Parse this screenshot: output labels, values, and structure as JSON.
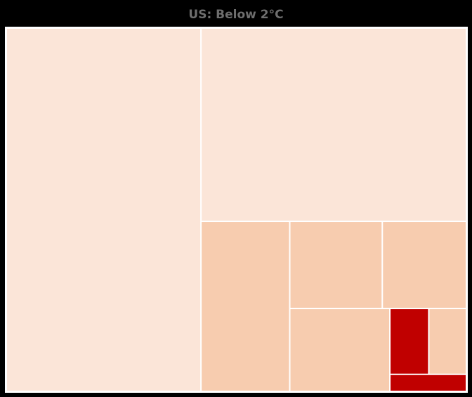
{
  "chart_data": {
    "type": "treemap",
    "title": "US: Below 2°C",
    "colors": {
      "light": "#fbe5d8",
      "medium": "#f7ccaf",
      "dark": "#c00000",
      "border": "#ffffff",
      "background": "#000000"
    },
    "cells": [
      {
        "area": 0.4231,
        "shade": "light"
      },
      {
        "area": 0.3069,
        "shade": "light"
      },
      {
        "area": 0.0902,
        "shade": "medium"
      },
      {
        "area": 0.0482,
        "shade": "medium"
      },
      {
        "area": 0.0438,
        "shade": "medium"
      },
      {
        "area": 0.0496,
        "shade": "medium"
      },
      {
        "area": 0.0153,
        "shade": "dark"
      },
      {
        "area": 0.0148,
        "shade": "medium"
      },
      {
        "area": 0.0078,
        "shade": "dark"
      }
    ]
  }
}
